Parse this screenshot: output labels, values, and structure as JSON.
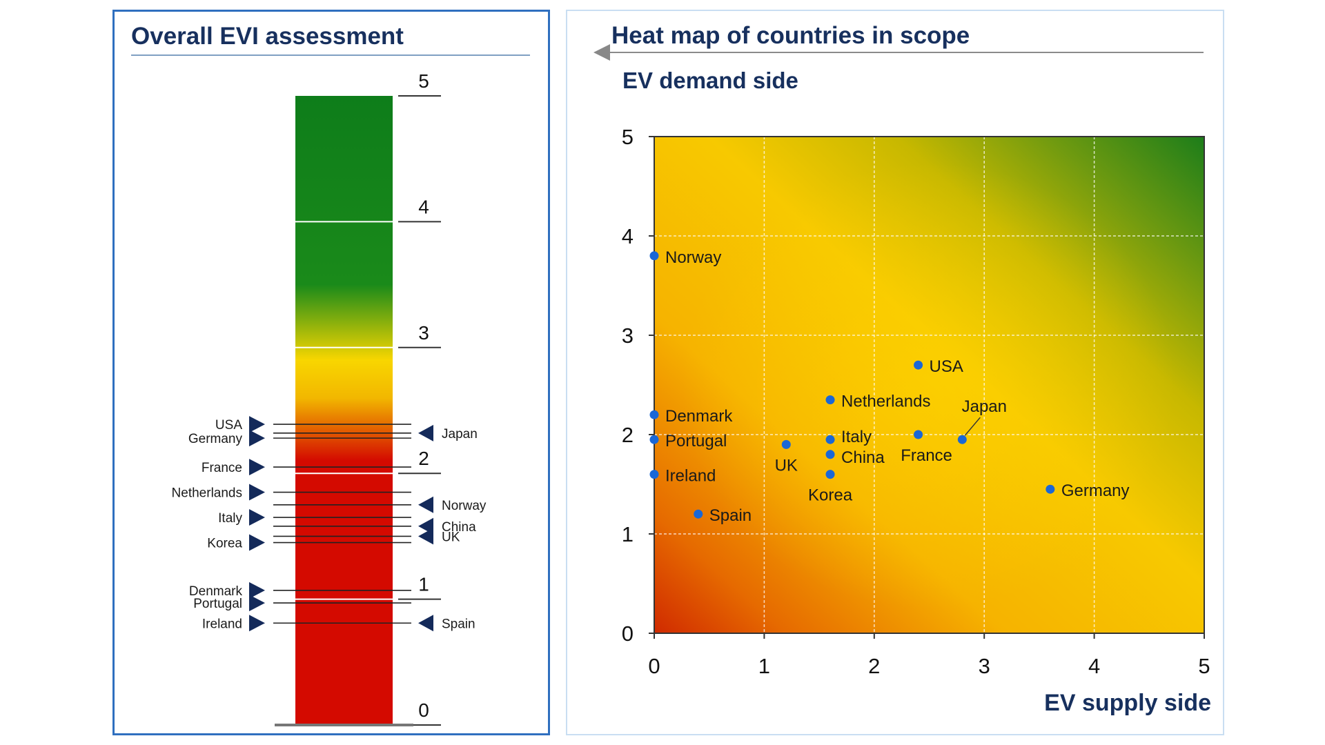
{
  "chart_data": [
    {
      "type": "bar",
      "title": "Overall EVI assessment",
      "ylim": [
        0,
        5
      ],
      "yticks": [
        "0",
        "1",
        "2",
        "3",
        "4",
        "5"
      ],
      "color_scale": [
        "#d40a00",
        "#d40a00",
        "#f2b700",
        "#f8d600",
        "#1a8a1a",
        "#0e7d1a"
      ],
      "countries_left": [
        {
          "label": "USA",
          "value": 2.39
        },
        {
          "label": "Germany",
          "value": 2.28
        },
        {
          "label": "France",
          "value": 2.05
        },
        {
          "label": "Netherlands",
          "value": 1.85
        },
        {
          "label": "Italy",
          "value": 1.65
        },
        {
          "label": "Korea",
          "value": 1.45
        },
        {
          "label": "Denmark",
          "value": 1.07
        },
        {
          "label": "Portugal",
          "value": 0.97
        },
        {
          "label": "Ireland",
          "value": 0.81
        }
      ],
      "countries_right": [
        {
          "label": "Japan",
          "value": 2.32
        },
        {
          "label": "Norway",
          "value": 1.75
        },
        {
          "label": "China",
          "value": 1.58
        },
        {
          "label": "UK",
          "value": 1.5
        },
        {
          "label": "Spain",
          "value": 0.81
        }
      ]
    },
    {
      "type": "scatter",
      "title": "Heat map of countries in scope",
      "ylabel": "EV demand side",
      "xlabel": "EV supply side",
      "xlim": [
        0,
        5
      ],
      "ylim": [
        0,
        5
      ],
      "xticks": [
        "0",
        "1",
        "2",
        "3",
        "4",
        "5"
      ],
      "yticks": [
        "0",
        "1",
        "2",
        "3",
        "4",
        "5"
      ],
      "grid": true,
      "point_color": "#1a67d6",
      "points": [
        {
          "label": "Norway",
          "x": 0.0,
          "y": 3.8
        },
        {
          "label": "USA",
          "x": 2.4,
          "y": 2.7
        },
        {
          "label": "Netherlands",
          "x": 1.6,
          "y": 2.35
        },
        {
          "label": "Japan",
          "x": 2.8,
          "y": 1.95
        },
        {
          "label": "Denmark",
          "x": 0.0,
          "y": 2.2
        },
        {
          "label": "Portugal",
          "x": 0.0,
          "y": 1.95
        },
        {
          "label": "Italy",
          "x": 1.6,
          "y": 1.95
        },
        {
          "label": "UK",
          "x": 1.2,
          "y": 1.9
        },
        {
          "label": "China",
          "x": 1.6,
          "y": 1.8
        },
        {
          "label": "France",
          "x": 2.4,
          "y": 2.0
        },
        {
          "label": "Ireland",
          "x": 0.0,
          "y": 1.6
        },
        {
          "label": "Korea",
          "x": 1.6,
          "y": 1.6
        },
        {
          "label": "Germany",
          "x": 3.6,
          "y": 1.45
        },
        {
          "label": "Spain",
          "x": 0.4,
          "y": 1.2
        }
      ]
    }
  ]
}
